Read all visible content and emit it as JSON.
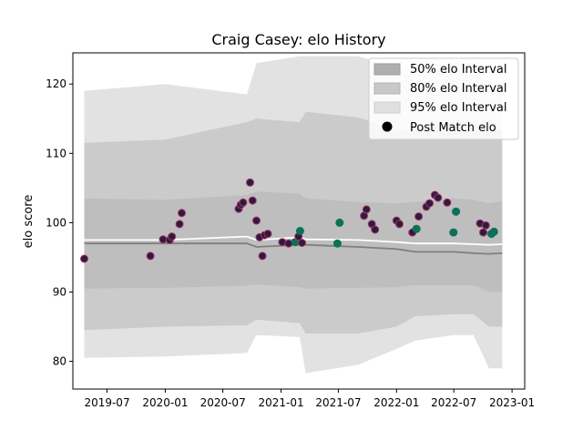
{
  "chart_data": {
    "type": "scatter",
    "title": "Craig Casey: elo History",
    "xlabel": "",
    "ylabel": "elo score",
    "xlim": [
      "2019-03-15",
      "2023-02-10"
    ],
    "ylim": [
      76,
      124.5
    ],
    "x_ticks": [
      "2019-07",
      "2020-01",
      "2020-07",
      "2021-01",
      "2021-07",
      "2022-01",
      "2022-07",
      "2023-01"
    ],
    "y_ticks": [
      80,
      90,
      100,
      110,
      120
    ],
    "grid": false,
    "legend": {
      "placement": "top-right",
      "entries": [
        {
          "label": "50% elo Interval",
          "kind": "patch",
          "color": "#b0b0b0"
        },
        {
          "label": "80% elo Interval",
          "kind": "patch",
          "color": "#c8c8c8"
        },
        {
          "label": "95% elo Interval",
          "kind": "patch",
          "color": "#e0e0e0"
        },
        {
          "label": "Post Match elo",
          "kind": "marker",
          "color": "#000000"
        }
      ]
    },
    "colors": {
      "band_95": "#e2e2e2",
      "band_80": "#cbcbcb",
      "band_50": "#bebebe",
      "median_line": "#7f7f7f",
      "mean_line": "#ffffff",
      "loss_point": "#2a1d3d",
      "loss_point_edge": "#b0306b",
      "win_point": "#0d7058"
    },
    "intervals": {
      "x": [
        "2019-04-20",
        "2020-01-01",
        "2020-09-15",
        "2020-10-15",
        "2021-03-01",
        "2021-03-20",
        "2021-09-01",
        "2022-01-01",
        "2022-03-01",
        "2022-07-01",
        "2022-09-01",
        "2022-10-20",
        "2022-12-01"
      ],
      "p2_5": [
        80.5,
        80.7,
        81.2,
        83.8,
        83.5,
        78.3,
        79.5,
        81.8,
        83.0,
        83.8,
        83.8,
        79.0,
        79.0
      ],
      "p10": [
        84.5,
        85.0,
        85.2,
        86.0,
        85.5,
        84.0,
        84.0,
        85.0,
        86.5,
        86.8,
        86.8,
        85.0,
        85.0
      ],
      "p25": [
        90.5,
        90.6,
        90.9,
        91.1,
        90.7,
        90.5,
        90.6,
        90.7,
        91.0,
        91.0,
        91.0,
        90.0,
        90.0
      ],
      "p50": [
        97.0,
        97.0,
        97.0,
        96.5,
        96.8,
        96.8,
        96.5,
        96.2,
        95.8,
        95.8,
        95.6,
        95.5,
        95.6
      ],
      "mean": [
        97.5,
        97.5,
        98.0,
        97.5,
        97.9,
        97.6,
        97.5,
        97.2,
        97.0,
        97.0,
        96.9,
        96.8,
        96.9
      ],
      "p75": [
        103.5,
        103.3,
        104.0,
        104.5,
        104.2,
        103.5,
        103.0,
        102.8,
        103.0,
        103.5,
        103.3,
        102.8,
        103.1
      ],
      "p90": [
        111.5,
        112.0,
        114.5,
        115.0,
        114.5,
        116.0,
        115.2,
        113.5,
        113.5,
        114.5,
        114.5,
        113.5,
        113.5
      ],
      "p97_5": [
        119.0,
        120.0,
        118.5,
        123.0,
        124.0,
        124.0,
        124.0,
        122.5,
        122.5,
        123.0,
        123.0,
        119.0,
        119.0
      ]
    },
    "series": [
      {
        "name": "Post Match elo",
        "points": [
          {
            "x": "2019-04-20",
            "y": 94.8,
            "result": "loss"
          },
          {
            "x": "2019-11-15",
            "y": 95.2,
            "result": "loss"
          },
          {
            "x": "2019-12-25",
            "y": 97.6,
            "result": "loss"
          },
          {
            "x": "2020-01-15",
            "y": 97.5,
            "result": "loss"
          },
          {
            "x": "2020-01-22",
            "y": 98.0,
            "result": "loss"
          },
          {
            "x": "2020-02-15",
            "y": 99.8,
            "result": "loss"
          },
          {
            "x": "2020-02-22",
            "y": 101.4,
            "result": "loss"
          },
          {
            "x": "2020-08-20",
            "y": 102.0,
            "result": "loss"
          },
          {
            "x": "2020-08-27",
            "y": 102.6,
            "result": "loss"
          },
          {
            "x": "2020-09-03",
            "y": 102.9,
            "result": "loss"
          },
          {
            "x": "2020-09-25",
            "y": 105.8,
            "result": "loss"
          },
          {
            "x": "2020-10-03",
            "y": 103.2,
            "result": "loss"
          },
          {
            "x": "2020-10-15",
            "y": 100.3,
            "result": "loss"
          },
          {
            "x": "2020-10-25",
            "y": 97.9,
            "result": "loss"
          },
          {
            "x": "2020-11-03",
            "y": 95.2,
            "result": "loss"
          },
          {
            "x": "2020-11-10",
            "y": 98.2,
            "result": "loss"
          },
          {
            "x": "2020-11-20",
            "y": 98.4,
            "result": "loss"
          },
          {
            "x": "2021-01-05",
            "y": 97.2,
            "result": "loss"
          },
          {
            "x": "2021-01-25",
            "y": 97.0,
            "result": "loss"
          },
          {
            "x": "2021-02-15",
            "y": 97.2,
            "result": "win"
          },
          {
            "x": "2021-02-25",
            "y": 98.0,
            "result": "loss"
          },
          {
            "x": "2021-03-02",
            "y": 98.8,
            "result": "win"
          },
          {
            "x": "2021-03-08",
            "y": 97.1,
            "result": "loss"
          },
          {
            "x": "2021-06-28",
            "y": 97.0,
            "result": "win"
          },
          {
            "x": "2021-07-05",
            "y": 100.0,
            "result": "win"
          },
          {
            "x": "2021-09-20",
            "y": 101.0,
            "result": "loss"
          },
          {
            "x": "2021-09-28",
            "y": 101.9,
            "result": "loss"
          },
          {
            "x": "2021-10-15",
            "y": 99.8,
            "result": "loss"
          },
          {
            "x": "2021-10-25",
            "y": 99.0,
            "result": "loss"
          },
          {
            "x": "2022-01-01",
            "y": 100.3,
            "result": "loss"
          },
          {
            "x": "2022-01-10",
            "y": 99.8,
            "result": "loss"
          },
          {
            "x": "2022-02-20",
            "y": 98.6,
            "result": "loss"
          },
          {
            "x": "2022-03-05",
            "y": 99.1,
            "result": "win"
          },
          {
            "x": "2022-03-12",
            "y": 100.9,
            "result": "loss"
          },
          {
            "x": "2022-04-05",
            "y": 102.3,
            "result": "loss"
          },
          {
            "x": "2022-04-15",
            "y": 102.8,
            "result": "loss"
          },
          {
            "x": "2022-05-02",
            "y": 104.0,
            "result": "loss"
          },
          {
            "x": "2022-05-12",
            "y": 103.6,
            "result": "loss"
          },
          {
            "x": "2022-06-10",
            "y": 102.9,
            "result": "loss"
          },
          {
            "x": "2022-06-30",
            "y": 98.6,
            "result": "win"
          },
          {
            "x": "2022-07-08",
            "y": 101.6,
            "result": "win"
          },
          {
            "x": "2022-09-22",
            "y": 99.9,
            "result": "loss"
          },
          {
            "x": "2022-10-02",
            "y": 98.6,
            "result": "loss"
          },
          {
            "x": "2022-10-10",
            "y": 99.6,
            "result": "loss"
          },
          {
            "x": "2022-10-28",
            "y": 98.4,
            "result": "win"
          },
          {
            "x": "2022-11-05",
            "y": 98.7,
            "result": "win"
          }
        ]
      }
    ]
  }
}
